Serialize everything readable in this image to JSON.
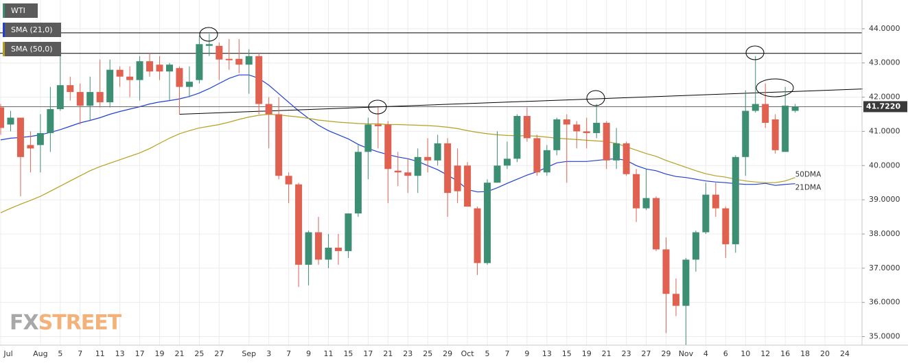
{
  "chart_data": {
    "type": "candlestick",
    "categories": [
      "Jul",
      null,
      null,
      null,
      "Aug",
      null,
      "5",
      null,
      "7",
      null,
      "11",
      null,
      "13",
      null,
      "17",
      null,
      "19",
      null,
      "21",
      null,
      "25",
      null,
      "27",
      null,
      null,
      "Sep",
      null,
      "3",
      null,
      "7",
      null,
      "9",
      null,
      "11",
      null,
      "15",
      null,
      "17",
      null,
      "21",
      null,
      "23",
      null,
      "25",
      null,
      "29",
      null,
      "Oct",
      null,
      "5",
      null,
      "7",
      null,
      "9",
      null,
      "13",
      null,
      "15",
      null,
      "19",
      null,
      "21",
      null,
      "23",
      null,
      "27",
      null,
      "29",
      null,
      "Nov",
      null,
      "4",
      null,
      "6",
      null,
      "10",
      null,
      "12",
      null,
      "16",
      null,
      "18",
      null,
      "20",
      null,
      "24"
    ],
    "series": [
      {
        "name": "WTI",
        "color": "#3d8f73",
        "up_color": "#3d8f73",
        "down_color": "#e06150",
        "open": [
          41.7,
          41.2,
          41.4,
          40.6,
          40.6,
          40.95,
          41.65,
          42.35,
          42.15,
          41.75,
          42.15,
          41.85,
          42.8,
          42.6,
          42.5,
          43.05,
          42.95,
          42.75,
          42.85,
          42.3,
          42.5,
          43.5,
          43.5,
          43.12,
          43.12,
          42.95,
          43.2,
          41.8,
          41.5,
          39.7,
          39.45,
          37.1,
          38.05,
          37.25,
          37.6,
          37.5,
          38.6,
          40.4,
          41.2,
          41.2,
          39.85,
          39.8,
          39.7,
          40.25,
          40.15,
          40.65,
          40.0,
          40.0,
          38.75,
          37.15,
          39.5,
          40.0,
          40.2,
          41.45,
          40.8,
          39.8,
          40.45,
          41.35,
          41.2,
          41.0,
          40.95,
          41.25,
          40.15,
          40.65,
          39.75,
          38.75,
          39.05,
          37.55,
          36.25,
          35.9,
          37.25,
          38.05,
          39.15,
          38.75,
          37.7,
          40.25,
          41.6,
          41.8,
          41.35,
          40.4,
          41.6,
          null,
          null,
          null,
          null,
          null
        ],
        "high": [
          41.8,
          41.6,
          41.4,
          41.0,
          41.5,
          42.3,
          43.4,
          42.6,
          42.4,
          42.6,
          43.1,
          43.1,
          42.9,
          42.9,
          43.2,
          43.3,
          43.2,
          43.0,
          42.9,
          42.9,
          43.8,
          43.85,
          43.6,
          43.7,
          43.7,
          43.4,
          43.3,
          42.0,
          42.0,
          39.8,
          39.5,
          38.1,
          38.5,
          38.0,
          38.0,
          38.6,
          40.6,
          41.4,
          41.7,
          41.3,
          40.4,
          40.2,
          40.5,
          40.8,
          40.9,
          40.8,
          40.5,
          40.1,
          38.8,
          39.6,
          41.0,
          40.7,
          41.5,
          41.7,
          40.9,
          40.6,
          41.4,
          41.5,
          41.3,
          41.4,
          41.8,
          41.3,
          41.1,
          40.7,
          39.9,
          39.9,
          39.1,
          37.9,
          36.7,
          37.3,
          38.1,
          39.5,
          39.5,
          38.8,
          40.3,
          42.2,
          43.2,
          42.4,
          41.5,
          42.3,
          41.8,
          null,
          null,
          null,
          null,
          null
        ],
        "low": [
          40.9,
          41.0,
          39.1,
          39.8,
          39.8,
          40.4,
          41.6,
          41.9,
          41.2,
          41.3,
          41.7,
          41.7,
          42.3,
          42.0,
          41.9,
          42.6,
          42.5,
          41.9,
          41.5,
          42.0,
          42.4,
          43.2,
          42.5,
          42.8,
          42.7,
          42.1,
          41.5,
          40.5,
          39.6,
          38.9,
          36.45,
          36.5,
          37.1,
          37.0,
          37.1,
          37.3,
          38.5,
          39.6,
          40.5,
          38.9,
          39.4,
          39.2,
          39.2,
          39.8,
          40.0,
          38.5,
          38.9,
          38.8,
          36.8,
          37.1,
          39.5,
          39.9,
          40.1,
          40.7,
          39.7,
          39.7,
          40.3,
          39.5,
          40.5,
          40.5,
          40.8,
          39.9,
          39.9,
          39.7,
          38.35,
          38.7,
          37.5,
          35.1,
          35.6,
          34.75,
          36.9,
          38.0,
          38.5,
          37.3,
          37.45,
          39.7,
          41.55,
          41.1,
          40.35,
          40.4,
          41.55,
          null,
          null,
          null,
          null,
          null
        ],
        "close": [
          41.1,
          41.4,
          40.25,
          40.5,
          40.95,
          41.65,
          42.35,
          42.15,
          41.75,
          42.15,
          41.85,
          42.8,
          42.6,
          42.5,
          43.05,
          42.75,
          42.75,
          42.95,
          42.3,
          42.45,
          43.55,
          43.55,
          43.1,
          43.08,
          42.95,
          43.2,
          41.8,
          41.5,
          39.7,
          39.45,
          37.1,
          38.05,
          37.25,
          37.6,
          37.5,
          38.6,
          40.4,
          41.2,
          41.15,
          39.9,
          39.8,
          39.7,
          40.25,
          40.15,
          40.65,
          39.2,
          39.25,
          38.8,
          37.15,
          39.5,
          40.0,
          40.2,
          41.45,
          40.8,
          39.8,
          40.45,
          41.35,
          41.2,
          41.0,
          40.95,
          41.25,
          40.15,
          40.65,
          39.75,
          38.75,
          39.05,
          37.55,
          36.25,
          35.9,
          37.25,
          38.05,
          39.15,
          38.75,
          37.7,
          40.25,
          41.6,
          41.8,
          41.25,
          40.45,
          41.75,
          41.722,
          null,
          null,
          null,
          null,
          null
        ]
      }
    ],
    "indicators": [
      {
        "name": "SMA (21,0)",
        "label": "21DMA",
        "color": "#1f3fd6",
        "values": [
          40.75,
          40.8,
          40.82,
          40.85,
          40.9,
          40.97,
          41.05,
          41.15,
          41.25,
          41.32,
          41.4,
          41.5,
          41.58,
          41.65,
          41.72,
          41.8,
          41.86,
          41.9,
          41.95,
          42.02,
          42.12,
          42.25,
          42.4,
          42.55,
          42.65,
          42.65,
          42.55,
          42.35,
          42.1,
          41.85,
          41.6,
          41.38,
          41.18,
          41.02,
          40.9,
          40.78,
          40.62,
          40.5,
          40.4,
          40.32,
          40.25,
          40.2,
          40.12,
          40.0,
          39.88,
          39.72,
          39.55,
          39.3,
          39.23,
          39.24,
          39.35,
          39.48,
          39.6,
          39.72,
          39.82,
          39.95,
          40.08,
          40.12,
          40.12,
          40.12,
          40.15,
          40.18,
          40.2,
          40.15,
          40.0,
          39.9,
          39.85,
          39.75,
          39.68,
          39.65,
          39.6,
          39.55,
          39.52,
          39.5,
          39.47,
          39.45,
          39.45,
          39.48,
          39.42,
          39.45,
          39.47,
          null,
          null,
          null,
          null,
          null
        ]
      },
      {
        "name": "SMA (50,0)",
        "label": "50DMA",
        "color": "#b5a020",
        "values": [
          38.62,
          38.75,
          38.87,
          38.98,
          39.1,
          39.25,
          39.4,
          39.55,
          39.7,
          39.85,
          39.97,
          40.07,
          40.17,
          40.27,
          40.37,
          40.5,
          40.65,
          40.8,
          40.93,
          41.02,
          41.1,
          41.15,
          41.2,
          41.27,
          41.35,
          41.42,
          41.47,
          41.5,
          41.48,
          41.45,
          41.42,
          41.38,
          41.33,
          41.3,
          41.27,
          41.25,
          41.23,
          41.22,
          41.22,
          41.2,
          41.2,
          41.19,
          41.18,
          41.17,
          41.15,
          41.12,
          41.08,
          41.02,
          40.97,
          40.93,
          40.9,
          40.88,
          40.87,
          40.87,
          40.86,
          40.83,
          40.8,
          40.78,
          40.76,
          40.74,
          40.72,
          40.7,
          40.65,
          40.55,
          40.45,
          40.35,
          40.27,
          40.15,
          40.05,
          39.95,
          39.85,
          39.76,
          39.7,
          39.66,
          39.6,
          39.55,
          39.52,
          39.5,
          39.5,
          39.55,
          39.65,
          null,
          null,
          null,
          null,
          null
        ]
      }
    ],
    "levels": [
      43.88,
      43.28
    ],
    "trendline": {
      "x": [
        18,
        86.8
      ],
      "y": [
        41.5,
        42.24
      ]
    },
    "last_price": {
      "value": 41.722,
      "label": "41.7220"
    },
    "ylim": [
      34.75,
      44.84
    ],
    "yticks": [
      {
        "value": 35,
        "label": "35.0000"
      },
      {
        "value": 36,
        "label": "36.0000"
      },
      {
        "value": 37,
        "label": "37.0000"
      },
      {
        "value": 38,
        "label": "38.0000"
      },
      {
        "value": 39,
        "label": "39.0000"
      },
      {
        "value": 40,
        "label": "40.0000"
      },
      {
        "value": 41,
        "label": "41.0000"
      },
      {
        "value": 42,
        "label": "42.0000"
      },
      {
        "value": 43,
        "label": "43.0000"
      },
      {
        "value": 44,
        "label": "44.0000"
      }
    ],
    "grid": true,
    "watermark": [
      "FX",
      "STREET"
    ]
  }
}
